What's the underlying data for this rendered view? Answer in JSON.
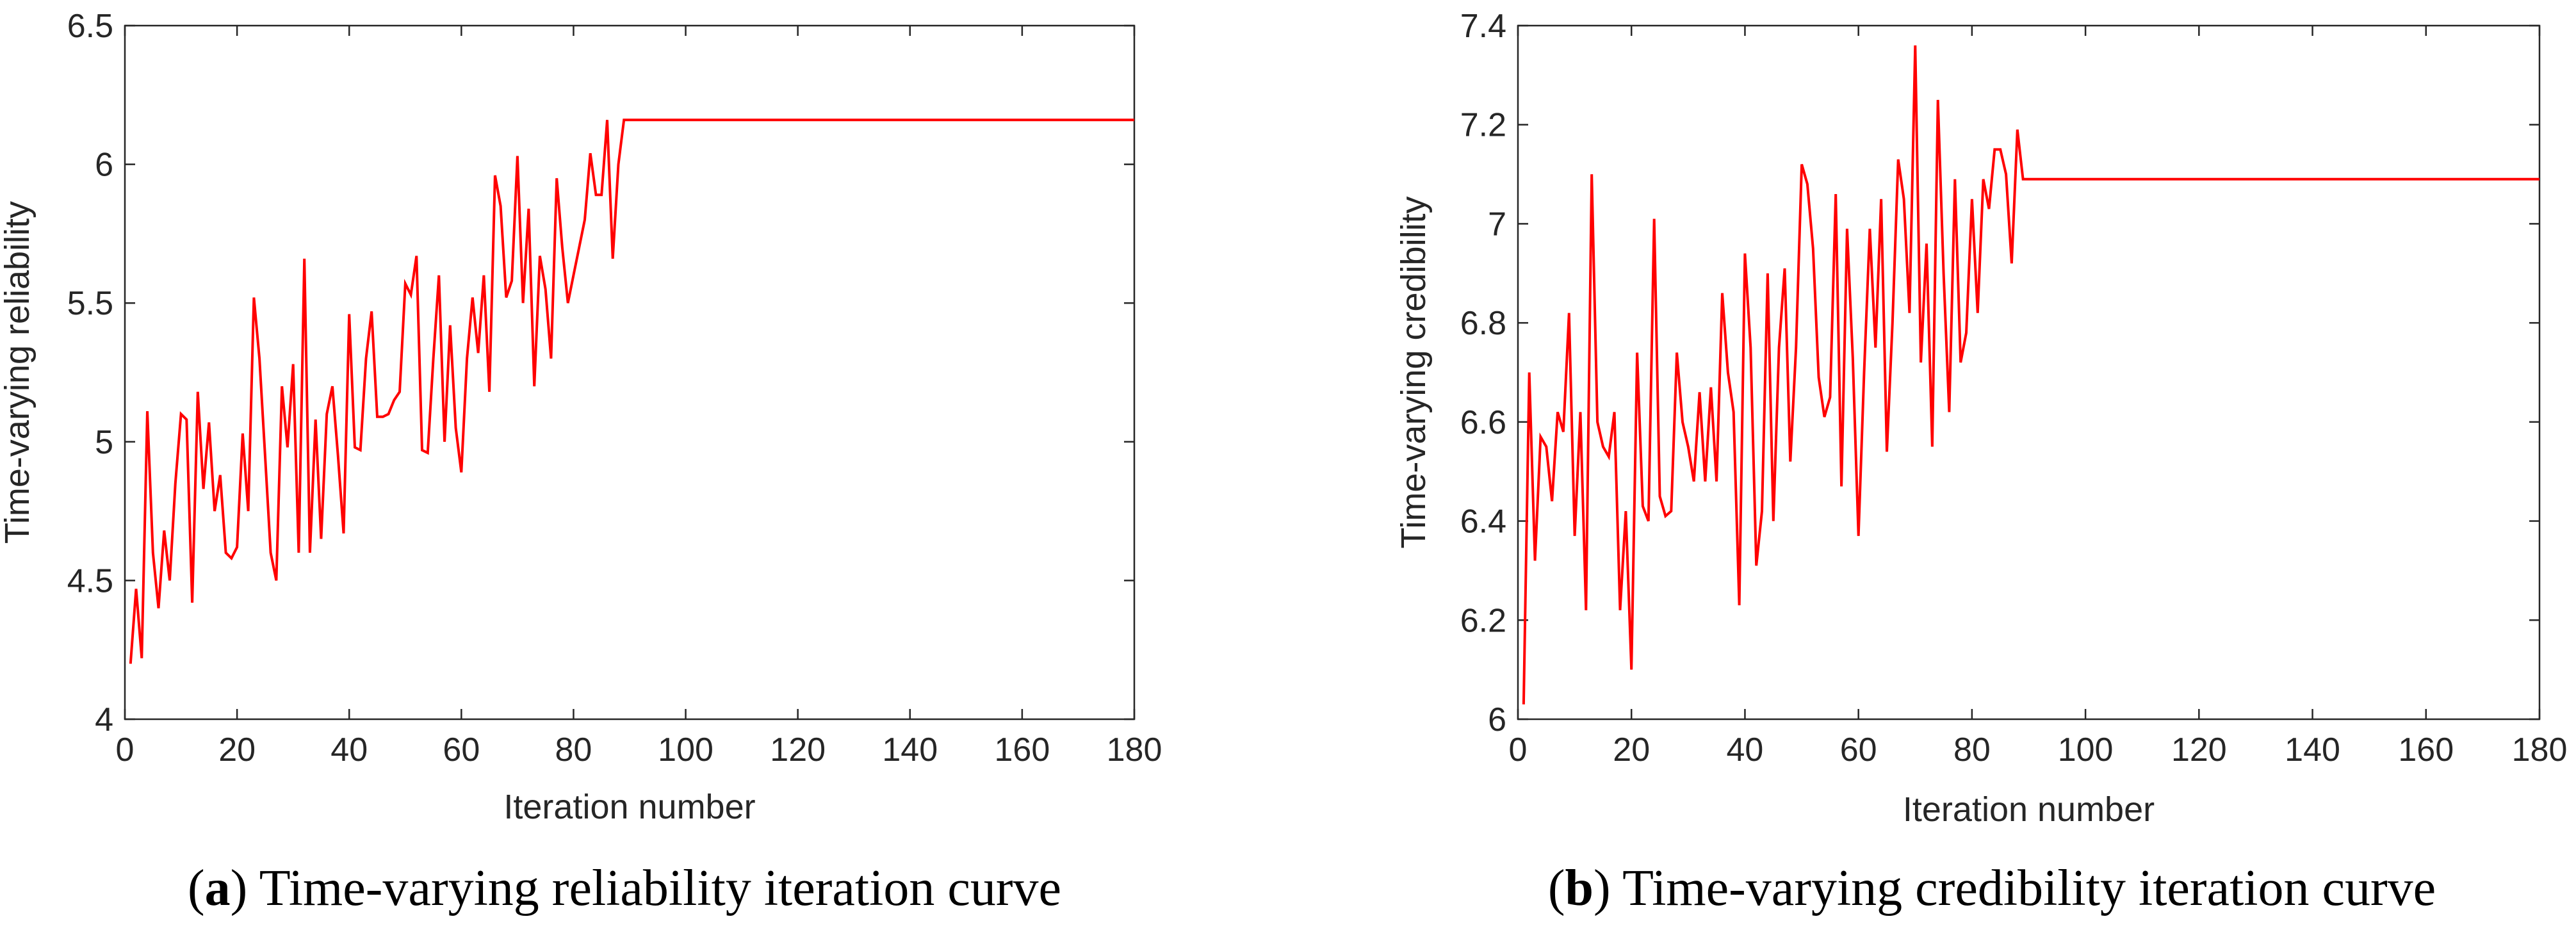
{
  "figure": {
    "series_color": "#ff0000",
    "axis_color": "#262626"
  },
  "chart_data": [
    {
      "type": "line",
      "panel": "a",
      "caption": {
        "open": "(",
        "letter": "a",
        "text": ") Time-varying reliability iteration curve"
      },
      "xlabel": "Iteration number",
      "ylabel": "Time-varying reliability",
      "xlim": [
        0,
        180
      ],
      "ylim": [
        4,
        6.5
      ],
      "xticks": [
        "0",
        "20",
        "40",
        "60",
        "80",
        "100",
        "120",
        "140",
        "160",
        "180"
      ],
      "yticks": [
        "4",
        "4.5",
        "5",
        "5.5",
        "6",
        "6.5"
      ],
      "grid": false,
      "series": [
        {
          "name": "Time-varying reliability",
          "x": [
            1,
            2,
            3,
            4,
            5,
            6,
            7,
            8,
            9,
            10,
            11,
            12,
            13,
            14,
            15,
            16,
            17,
            18,
            19,
            20,
            21,
            22,
            23,
            24,
            25,
            26,
            27,
            28,
            29,
            30,
            31,
            32,
            33,
            34,
            35,
            36,
            37,
            38,
            39,
            40,
            41,
            42,
            43,
            44,
            45,
            46,
            47,
            48,
            49,
            50,
            51,
            52,
            53,
            54,
            55,
            56,
            57,
            58,
            59,
            60,
            61,
            62,
            63,
            64,
            65,
            66,
            67,
            68,
            69,
            70,
            71,
            72,
            73,
            74,
            75,
            76,
            77,
            78,
            79,
            80,
            81,
            82,
            83,
            84,
            85,
            86,
            87,
            88,
            89,
            180
          ],
          "values": [
            4.2,
            4.47,
            4.22,
            5.11,
            4.6,
            4.4,
            4.68,
            4.5,
            4.85,
            5.1,
            5.08,
            4.42,
            5.18,
            4.83,
            5.07,
            4.75,
            4.88,
            4.6,
            4.58,
            4.62,
            5.03,
            4.75,
            5.52,
            5.3,
            4.95,
            4.6,
            4.5,
            5.2,
            4.98,
            5.28,
            4.6,
            5.66,
            4.6,
            5.08,
            4.65,
            5.1,
            5.2,
            4.95,
            4.67,
            5.46,
            4.98,
            4.97,
            5.3,
            5.47,
            5.09,
            5.09,
            5.1,
            5.15,
            5.18,
            5.57,
            5.53,
            5.67,
            4.97,
            4.96,
            5.3,
            5.6,
            5.0,
            5.42,
            5.05,
            4.89,
            5.3,
            5.52,
            5.32,
            5.6,
            5.18,
            5.96,
            5.85,
            5.52,
            5.58,
            6.03,
            5.5,
            5.84,
            5.2,
            5.67,
            5.55,
            5.3,
            5.95,
            5.7,
            5.5,
            5.6,
            5.7,
            5.8,
            6.04,
            5.89,
            5.89,
            6.16,
            5.66,
            6.0,
            6.16,
            6.16
          ]
        }
      ]
    },
    {
      "type": "line",
      "panel": "b",
      "caption": {
        "open": "(",
        "letter": "b",
        "text": ") Time-varying credibility iteration curve"
      },
      "xlabel": "Iteration number",
      "ylabel": "Time-varying credibility",
      "xlim": [
        0,
        180
      ],
      "ylim": [
        6,
        7.4
      ],
      "xticks": [
        "0",
        "20",
        "40",
        "60",
        "80",
        "100",
        "120",
        "140",
        "160",
        "180"
      ],
      "yticks": [
        "6",
        "6.2",
        "6.4",
        "6.6",
        "6.8",
        "7",
        "7.2",
        "7.4"
      ],
      "grid": false,
      "series": [
        {
          "name": "Time-varying credibility",
          "x": [
            1,
            2,
            3,
            4,
            5,
            6,
            7,
            8,
            9,
            10,
            11,
            12,
            13,
            14,
            15,
            16,
            17,
            18,
            19,
            20,
            21,
            22,
            23,
            24,
            25,
            26,
            27,
            28,
            29,
            30,
            31,
            32,
            33,
            34,
            35,
            36,
            37,
            38,
            39,
            40,
            41,
            42,
            43,
            44,
            45,
            46,
            47,
            48,
            49,
            50,
            51,
            52,
            53,
            54,
            55,
            56,
            57,
            58,
            59,
            60,
            61,
            62,
            63,
            64,
            65,
            66,
            67,
            68,
            69,
            70,
            71,
            72,
            73,
            74,
            75,
            76,
            77,
            78,
            79,
            80,
            81,
            82,
            83,
            84,
            85,
            86,
            87,
            88,
            89,
            180
          ],
          "values": [
            6.03,
            6.7,
            6.32,
            6.57,
            6.55,
            6.44,
            6.62,
            6.58,
            6.82,
            6.37,
            6.62,
            6.22,
            7.1,
            6.6,
            6.55,
            6.53,
            6.62,
            6.22,
            6.42,
            6.1,
            6.74,
            6.43,
            6.4,
            7.01,
            6.45,
            6.41,
            6.42,
            6.74,
            6.6,
            6.55,
            6.48,
            6.66,
            6.48,
            6.67,
            6.48,
            6.86,
            6.7,
            6.62,
            6.23,
            6.94,
            6.75,
            6.31,
            6.42,
            6.9,
            6.4,
            6.75,
            6.91,
            6.52,
            6.75,
            7.12,
            7.08,
            6.95,
            6.69,
            6.61,
            6.65,
            7.06,
            6.47,
            6.99,
            6.73,
            6.37,
            6.7,
            6.99,
            6.75,
            7.05,
            6.54,
            6.8,
            7.13,
            7.05,
            6.82,
            7.36,
            6.72,
            6.96,
            6.55,
            7.25,
            6.9,
            6.62,
            7.09,
            6.72,
            6.78,
            7.05,
            6.82,
            7.09,
            7.03,
            7.15,
            7.15,
            7.1,
            6.92,
            7.19,
            7.09,
            7.09
          ]
        }
      ]
    }
  ]
}
